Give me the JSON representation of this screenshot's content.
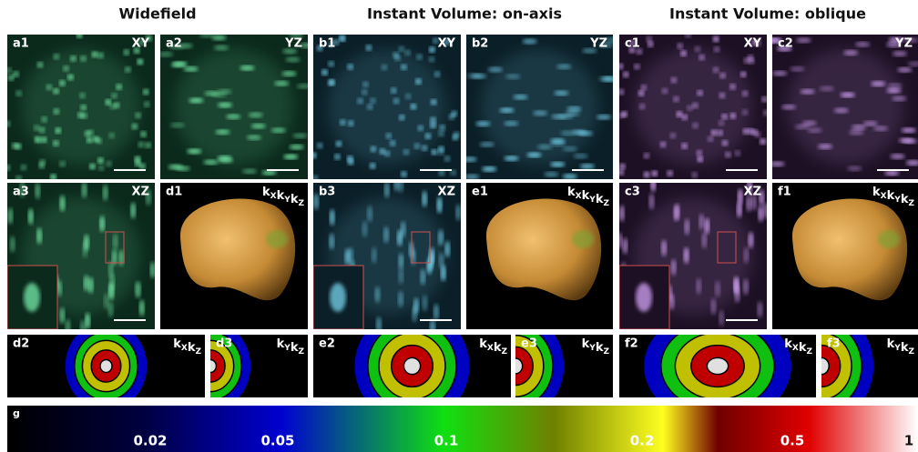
{
  "column_titles": [
    "Widefield",
    "Instant Volume: on-axis",
    "Instant Volume: oblique"
  ],
  "panels": [
    {
      "label": "a1",
      "view": "XY"
    },
    {
      "label": "a2",
      "view": "YZ"
    },
    {
      "label": "b1",
      "view": "XY"
    },
    {
      "label": "b2",
      "view": "YZ"
    },
    {
      "label": "c1",
      "view": "XY"
    },
    {
      "label": "c2",
      "view": "YZ"
    },
    {
      "label": "a3",
      "view": "XZ"
    },
    {
      "label": "d1",
      "view": [
        [
          "k",
          "X"
        ],
        [
          "k",
          "Y"
        ],
        [
          "k",
          "Z"
        ]
      ]
    },
    {
      "label": "b3",
      "view": "XZ"
    },
    {
      "label": "e1",
      "view": [
        [
          "k",
          "X"
        ],
        [
          "k",
          "Y"
        ],
        [
          "k",
          "Z"
        ]
      ]
    },
    {
      "label": "c3",
      "view": "XZ"
    },
    {
      "label": "f1",
      "view": [
        [
          "k",
          "X"
        ],
        [
          "k",
          "Y"
        ],
        [
          "k",
          "Z"
        ]
      ]
    },
    {
      "label": "d2",
      "view": [
        [
          "k",
          "X"
        ],
        [
          "k",
          "Z"
        ]
      ]
    },
    {
      "label": "d3",
      "view": [
        [
          "k",
          "Y"
        ],
        [
          "k",
          "Z"
        ]
      ]
    },
    {
      "label": "e2",
      "view": [
        [
          "k",
          "X"
        ],
        [
          "k",
          "Z"
        ]
      ]
    },
    {
      "label": "e3",
      "view": [
        [
          "k",
          "Y"
        ],
        [
          "k",
          "Z"
        ]
      ]
    },
    {
      "label": "f2",
      "view": [
        [
          "k",
          "X"
        ],
        [
          "k",
          "Z"
        ]
      ]
    },
    {
      "label": "f3",
      "view": [
        [
          "k",
          "Y"
        ],
        [
          "k",
          "Z"
        ]
      ]
    }
  ],
  "colorbar": {
    "label": "g",
    "ticks": [
      "0.02",
      "0.05",
      "0.1",
      "0.2",
      "0.5",
      "1"
    ]
  }
}
